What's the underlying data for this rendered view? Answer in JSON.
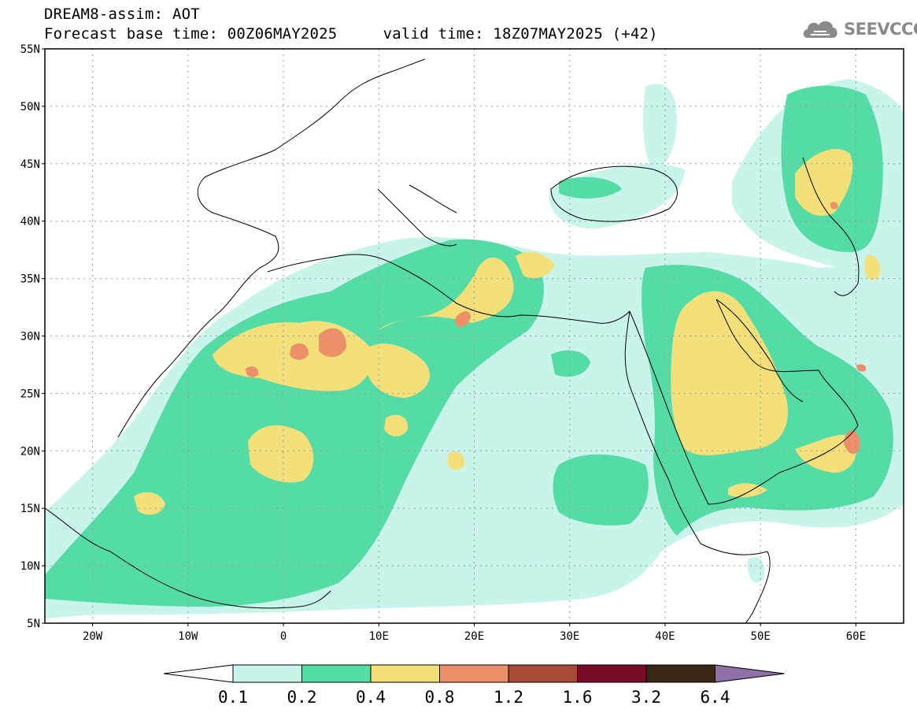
{
  "header": {
    "line1": "DREAM8-assim: AOT",
    "line2": "Forecast base time: 00Z06MAY2025     valid time: 18Z07MAY2025 (+42)"
  },
  "logo": {
    "text": "SEEVCCC",
    "icon": "cloud-icon",
    "color": "#8a8a8a"
  },
  "map": {
    "lon_range": [
      -25,
      65
    ],
    "lat_range": [
      5,
      55
    ],
    "lat_ticks": [
      "55N",
      "50N",
      "45N",
      "40N",
      "35N",
      "30N",
      "25N",
      "20N",
      "15N",
      "10N",
      "5N"
    ],
    "lat_values": [
      55,
      50,
      45,
      40,
      35,
      30,
      25,
      20,
      15,
      10,
      5
    ],
    "lon_ticks": [
      "20W",
      "10W",
      "0",
      "10E",
      "20E",
      "30E",
      "40E",
      "50E",
      "60E"
    ],
    "lon_values": [
      -20,
      -10,
      0,
      10,
      20,
      30,
      40,
      50,
      60
    ],
    "grid": "dotted"
  },
  "colorbar": {
    "levels": [
      "0.1",
      "0.2",
      "0.4",
      "0.8",
      "1.2",
      "1.6",
      "3.2",
      "6.4"
    ],
    "colors": [
      "#c8f4ec",
      "#55dba6",
      "#f3e07a",
      "#eb9068",
      "#a84a38",
      "#7a0c2a",
      "#3a2616",
      "#9070a8"
    ],
    "under_color": "#ffffff"
  }
}
